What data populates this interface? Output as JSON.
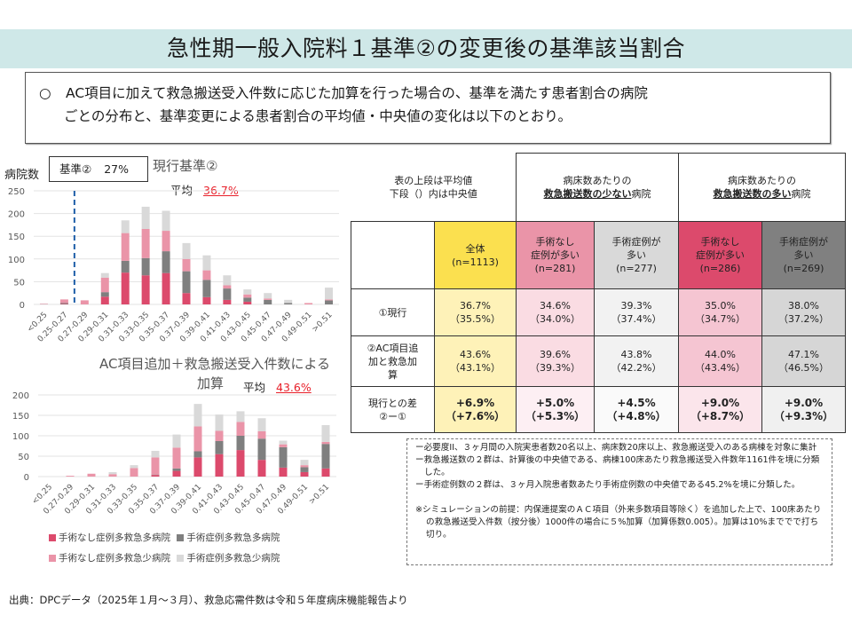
{
  "title": "急性期一般入院料１基準②の変更後の基準該当割合",
  "summary": {
    "bullet": "○",
    "line1": "AC項目に加えて救急搬送受入件数に応じた加算を行った場合の、基準を満たす患者割合の病院",
    "line2": "ごとの分布と、基準変更による患者割合の平均値・中央値の変化は以下のとおり。"
  },
  "colors": {
    "red": "#DC4A6C",
    "darkgray": "#7F7F7F",
    "pink": "#EA94A8",
    "lightgray": "#D9D9D9",
    "dashed_line": "#1F5FA8",
    "avg_value": "#E8202A"
  },
  "legend": [
    {
      "label": "手術なし症例多救急多病院",
      "color": "#DC4A6C"
    },
    {
      "label": "手術症例多救急多病院",
      "color": "#7F7F7F"
    },
    {
      "label": "手術なし症例多救急少病院",
      "color": "#EA94A8"
    },
    {
      "label": "手術症例多救急少病院",
      "color": "#D9D9D9"
    }
  ],
  "chart_data": [
    {
      "type": "bar",
      "stacked": true,
      "title": "現行基準②",
      "ylabel": "病院数",
      "annotation_box": {
        "label": "基準②",
        "value": "27%"
      },
      "threshold_line": {
        "position_between": [
          "0.25-0.27",
          "0.27-0.29"
        ],
        "label": "基準② 27%",
        "style": "dashed"
      },
      "avg_label": "平均",
      "avg_value": "36.7%",
      "ylim": [
        0,
        250
      ],
      "yticks": [
        0,
        50,
        100,
        150,
        200,
        250
      ],
      "grid": true,
      "categories": [
        "<0.25",
        "0.25-0.27",
        "0.27-0.29",
        "0.29-0.31",
        "0.31-0.33",
        "0.33-0.35",
        "0.35-0.37",
        "0.37-0.39",
        "0.39-0.41",
        "0.41-0.43",
        "0.43-0.45",
        "0.45-0.47",
        "0.47-0.49",
        "0.49-0.51",
        ">0.51"
      ],
      "series": [
        {
          "name": "手術なし症例多救急多病院",
          "values": [
            0,
            1,
            0,
            17,
            70,
            64,
            69,
            25,
            16,
            10,
            6,
            0,
            0,
            0,
            0
          ]
        },
        {
          "name": "手術症例多救急多病院",
          "values": [
            0,
            2,
            0,
            10,
            26,
            38,
            48,
            48,
            38,
            25,
            9,
            10,
            3,
            0,
            9
          ]
        },
        {
          "name": "手術なし症例多救急少病院",
          "values": [
            1,
            8,
            9,
            32,
            61,
            64,
            45,
            27,
            21,
            7,
            7,
            3,
            0,
            3,
            2
          ]
        },
        {
          "name": "手術症例多救急少病院",
          "values": [
            1,
            0,
            0,
            10,
            28,
            49,
            44,
            35,
            33,
            22,
            11,
            12,
            7,
            0,
            26
          ]
        }
      ]
    },
    {
      "type": "bar",
      "stacked": true,
      "title": "AC項目追加＋救急搬送受入件数による加算",
      "title_line1": "AC項目追加＋救急搬送受入件数による",
      "title_line2": "加算",
      "avg_label": "平均",
      "avg_value": "43.6%",
      "ylim": [
        0,
        200
      ],
      "yticks": [
        0,
        50,
        100,
        150,
        200
      ],
      "grid": true,
      "categories": [
        "<0.25",
        "0.27-0.29",
        "0.29-0.31",
        "0.31-0.33",
        "0.33-0.35",
        "0.35-0.37",
        "0.37-0.39",
        "0.39-0.41",
        "0.41-0.43",
        "0.43-0.45",
        "0.45-0.47",
        "0.47-0.49",
        "0.49-0.51",
        ">0.51"
      ],
      "series": [
        {
          "name": "手術なし症例多救急多病院",
          "values": [
            0,
            0,
            0,
            0,
            0,
            4,
            14,
            47,
            55,
            65,
            41,
            22,
            11,
            20
          ]
        },
        {
          "name": "手術症例多救急多病院",
          "values": [
            0,
            0,
            0,
            0,
            0,
            1,
            6,
            15,
            32,
            35,
            52,
            50,
            12,
            60
          ]
        },
        {
          "name": "手術なし症例多救急少病院",
          "values": [
            0,
            2,
            7,
            6,
            21,
            42,
            51,
            61,
            25,
            34,
            18,
            7,
            5,
            5
          ]
        },
        {
          "name": "手術症例多救急少病院",
          "values": [
            0,
            0,
            0,
            5,
            7,
            16,
            32,
            55,
            40,
            26,
            32,
            9,
            13,
            41
          ]
        }
      ]
    },
    {
      "type": "table",
      "corner_note": [
        "表の上段は平均値",
        "下段（）内は中央値"
      ],
      "group_headers": [
        {
          "line1": "病床数あたりの",
          "bold": "救急搬送数の少ない",
          "suffix": "病院"
        },
        {
          "line1": "病床数あたりの",
          "bold": "救急搬送数の多い",
          "suffix": "病院"
        }
      ],
      "columns": [
        {
          "label_lines": [
            "全体"
          ],
          "n": "(n=1113)",
          "header_color": "#FBE04F",
          "cell_color": "#FEF2B8",
          "diff_color": "#FEF2B8"
        },
        {
          "label_lines": [
            "手術なし",
            "症例が多い"
          ],
          "n": "(n=281)",
          "header_color": "#EA94A8",
          "cell_color": "#FADCE3",
          "diff_color": "#FDEFF3"
        },
        {
          "label_lines": [
            "手術症例が",
            "多い"
          ],
          "n": "(n=277)",
          "header_color": "#D9D9D9",
          "cell_color": "#F2F2F2",
          "diff_color": "#FAFAFA"
        },
        {
          "label_lines": [
            "手術なし",
            "症例が多い"
          ],
          "n": "(n=286)",
          "header_color": "#DC4A6C",
          "cell_color": "#F5C5D2",
          "diff_color": "#FBE5EB"
        },
        {
          "label_lines": [
            "手術症例が",
            "多い"
          ],
          "n": "(n=269)",
          "header_color": "#808080",
          "cell_color": "#D6D6D6",
          "diff_color": "#F0F0F0"
        }
      ],
      "rows": [
        {
          "label_lines": [
            "①現行"
          ],
          "means": [
            "36.7%",
            "34.6%",
            "39.3%",
            "35.0%",
            "38.0%"
          ],
          "medians": [
            "（35.5%）",
            "（34.0%）",
            "（37.4%）",
            "（34.7%）",
            "（37.2%）"
          ]
        },
        {
          "label_lines": [
            "②AC項目追",
            "加と救急加",
            "算"
          ],
          "means": [
            "43.6%",
            "39.6%",
            "43.8%",
            "44.0%",
            "47.1%"
          ],
          "medians": [
            "（43.1%）",
            "（39.3%）",
            "（42.2%）",
            "（43.4%）",
            "（46.5%）"
          ]
        },
        {
          "label_lines": [
            "現行との差",
            "②ー①"
          ],
          "means": [
            "+6.9%",
            "+5.0%",
            "+4.5%",
            "+9.0%",
            "+9.0%"
          ],
          "medians": [
            "（+7.6%）",
            "（+5.3%）",
            "（+4.8%）",
            "（+8.7%）",
            "（+9.3%）"
          ]
        }
      ]
    }
  ],
  "notes": {
    "items": [
      "ー必要度II、３ヶ月間の入院実患者数20名以上、病床数20床以上、救急搬送受入のある病棟を対象に集計",
      "ー救急搬送数の２群は、計算後の中央値である、病棟100床あたり救急搬送受入件数年1161件を境に分類した。",
      "ー手術症例数の２群は、３ヶ月入院患者数あたり手術症例数の中央値である45.2%を境に分類した。"
    ],
    "simulation": "※シミュレーションの前提：内保連提案のＡＣ項目（外来多数項目等除く）を追加した上で、100床あたりの救急搬送受入件数（按分後）1000件の場合に５%加算（加算係数0.005）。加算は10%まででで打ち切り。"
  },
  "source": "出典：DPCデータ（2025年１月～３月）、救急応需件数は令和５年度病床機能報告より"
}
